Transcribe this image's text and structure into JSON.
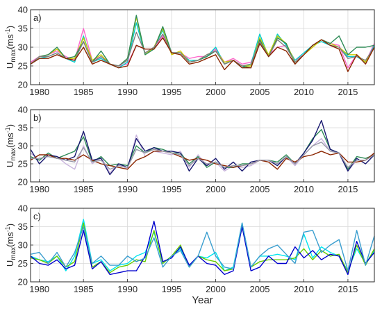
{
  "chart_data": [
    {
      "type": "line",
      "panel_label": "a)",
      "ylabel_main": "U",
      "ylabel_sub": "max",
      "ylabel_unit": "(ms",
      "ylabel_unit_exp": "-1",
      "ylabel_unit_close": ")",
      "ylim": [
        20,
        40
      ],
      "yticks": [
        20,
        25,
        30,
        35,
        40
      ],
      "xlim": [
        1979,
        2018
      ],
      "xticks": [
        1980,
        1985,
        1990,
        1995,
        2000,
        2005,
        2010,
        2015
      ],
      "grid": true,
      "x": [
        1979,
        1980,
        1981,
        1982,
        1983,
        1984,
        1985,
        1986,
        1987,
        1988,
        1989,
        1990,
        1991,
        1992,
        1993,
        1994,
        1995,
        1996,
        1997,
        1998,
        1999,
        2000,
        2001,
        2002,
        2003,
        2004,
        2005,
        2006,
        2007,
        2008,
        2009,
        2010,
        2011,
        2012,
        2013,
        2014,
        2015,
        2016,
        2017,
        2018
      ],
      "series": [
        {
          "color": "#ff66cc",
          "values": [
            26,
            27.5,
            28,
            29,
            27.5,
            26.5,
            35,
            26.5,
            27.5,
            25.5,
            25,
            25.5,
            30.5,
            29.5,
            29.5,
            33,
            28.5,
            28.5,
            27,
            27.5,
            27.5,
            29.5,
            26,
            27,
            25.5,
            26,
            31.5,
            28,
            30,
            30.5,
            26.5,
            28,
            30.5,
            32,
            31,
            30.5,
            24.5,
            28,
            26,
            31
          ]
        },
        {
          "color": "#00cccc",
          "values": [
            25.5,
            27,
            27.5,
            28.5,
            27,
            26,
            33,
            26,
            27,
            25.5,
            24.5,
            26,
            36.5,
            28,
            30,
            34.5,
            28.5,
            28.5,
            26.5,
            26.5,
            27.5,
            30,
            25.5,
            26.5,
            24.5,
            25.5,
            33.5,
            27.5,
            33.5,
            30.5,
            26.5,
            28.5,
            30.5,
            31.5,
            30.5,
            30,
            27.5,
            27.5,
            26,
            30.5
          ]
        },
        {
          "color": "#cccc00",
          "values": [
            25.5,
            27.5,
            28,
            29.5,
            27,
            27,
            32.5,
            26.5,
            28,
            25.5,
            25,
            27,
            38,
            28,
            30,
            35,
            28,
            29,
            26,
            26.5,
            28,
            29,
            26,
            26.5,
            25,
            25,
            32.5,
            28,
            33,
            31,
            26,
            28,
            30,
            32,
            31,
            30,
            28,
            28,
            26,
            30
          ]
        },
        {
          "color": "#2e8b57",
          "values": [
            25.5,
            27.5,
            28,
            30,
            27,
            27.5,
            31.5,
            26,
            29,
            25.5,
            25,
            27,
            38.5,
            28,
            29.5,
            35.5,
            28.5,
            28.5,
            26,
            26.5,
            27.5,
            29,
            25.5,
            26.5,
            25,
            24.5,
            32,
            27.5,
            32.5,
            31,
            25.5,
            28,
            30.5,
            32,
            31,
            33,
            28,
            30,
            30,
            30.5
          ]
        },
        {
          "color": "#7f7f7f",
          "values": [
            25.5,
            27.5,
            27.5,
            28.5,
            27,
            26.5,
            31.5,
            26,
            27.5,
            25.5,
            25,
            26.5,
            34,
            28.5,
            30,
            33.5,
            28.5,
            28.5,
            26,
            26.5,
            28,
            29,
            25.5,
            26.5,
            25,
            25.5,
            31.5,
            27.5,
            32,
            30,
            26,
            28,
            30.5,
            32,
            30.5,
            30,
            27,
            27.5,
            26.5,
            30
          ]
        },
        {
          "color": "#8b2500",
          "values": [
            25.5,
            27,
            27,
            28,
            27,
            26.5,
            30,
            25.5,
            26.5,
            25.5,
            24.5,
            25,
            30.5,
            29.5,
            29.5,
            32.5,
            28.5,
            28,
            25.5,
            26,
            27,
            28,
            24,
            26.5,
            24.5,
            24.5,
            31,
            27.5,
            30,
            29,
            25.5,
            28,
            30.5,
            32,
            30.5,
            29.5,
            23.5,
            28,
            25.5,
            30
          ]
        }
      ]
    },
    {
      "type": "line",
      "panel_label": "b)",
      "ylabel_main": "U",
      "ylabel_sub": "max",
      "ylabel_unit": "(ms",
      "ylabel_unit_exp": "-1",
      "ylabel_unit_close": ")",
      "ylim": [
        20,
        40
      ],
      "yticks": [
        20,
        25,
        30,
        35,
        40
      ],
      "xlim": [
        1979,
        2018
      ],
      "xticks": [
        1980,
        1985,
        1990,
        1995,
        2000,
        2005,
        2010,
        2015
      ],
      "grid": true,
      "x": [
        1979,
        1980,
        1981,
        1982,
        1983,
        1984,
        1985,
        1986,
        1987,
        1988,
        1989,
        1990,
        1991,
        1992,
        1993,
        1994,
        1995,
        1996,
        1997,
        1998,
        1999,
        2000,
        2001,
        2002,
        2003,
        2004,
        2005,
        2006,
        2007,
        2008,
        2009,
        2010,
        2011,
        2012,
        2013,
        2014,
        2015,
        2016,
        2017,
        2018
      ],
      "series": [
        {
          "color": "#c8b4dc",
          "values": [
            28,
            26,
            27.5,
            27,
            25,
            23.5,
            30,
            25,
            27,
            22.5,
            25,
            23.5,
            33,
            27,
            28.5,
            28,
            27.5,
            28.5,
            24,
            27.5,
            24.5,
            25.5,
            23,
            24.5,
            24,
            24.5,
            26,
            26,
            25,
            27,
            24.5,
            27.5,
            30,
            32,
            28.5,
            28,
            23,
            26,
            26,
            28
          ]
        },
        {
          "color": "#2e8b57",
          "values": [
            27,
            26,
            28,
            26.5,
            27.5,
            28.5,
            32.5,
            25.5,
            27,
            24.5,
            25,
            24.5,
            30,
            28,
            29.5,
            29,
            28,
            28,
            25,
            27,
            24,
            25.5,
            24,
            24,
            25,
            25,
            26,
            26,
            25.5,
            27.5,
            25,
            28,
            32,
            34.5,
            29,
            28,
            23.5,
            27,
            26.5,
            27.5
          ]
        },
        {
          "color": "#191970",
          "values": [
            29,
            25,
            27.5,
            27,
            26,
            27,
            34,
            26,
            26.5,
            22,
            25,
            24,
            32,
            28.5,
            29.5,
            28.5,
            28.5,
            28,
            23,
            26.5,
            24.5,
            26.5,
            23.5,
            25.5,
            23,
            25.5,
            26,
            26,
            24.5,
            27,
            25,
            28,
            31.5,
            37,
            29,
            28,
            23,
            26.5,
            25,
            27.5
          ]
        },
        {
          "color": "#8b2500",
          "values": [
            26,
            27.5,
            27.5,
            26.5,
            26.5,
            26,
            27.5,
            26,
            25,
            24.5,
            24,
            23.5,
            26,
            27,
            28.5,
            28.5,
            28,
            27,
            26,
            26.5,
            26,
            25,
            24.5,
            24,
            24.5,
            25,
            26,
            25.5,
            23.5,
            26.5,
            25.5,
            27,
            27.5,
            28.5,
            27.5,
            28,
            25.5,
            25.5,
            26,
            28
          ]
        },
        {
          "color": "#9999aa",
          "values": [
            26.5,
            26.5,
            27,
            26.5,
            26,
            25.5,
            29.5,
            25.5,
            26,
            23.5,
            24.5,
            24,
            29,
            28,
            29,
            28.5,
            28,
            27.5,
            24.5,
            26.5,
            25,
            25.5,
            24,
            24.5,
            24.5,
            25,
            26,
            26,
            25,
            27,
            25,
            27.5,
            30,
            31,
            28.5,
            28,
            24,
            26,
            26,
            27.5
          ]
        }
      ]
    },
    {
      "type": "line",
      "panel_label": "c)",
      "ylabel_main": "U",
      "ylabel_sub": "max",
      "ylabel_unit": "(ms",
      "ylabel_unit_exp": "-1",
      "ylabel_unit_close": ")",
      "xlabel": "Year",
      "ylim": [
        20,
        40
      ],
      "yticks": [
        20,
        25,
        30,
        35,
        40
      ],
      "xlim": [
        1979,
        2018
      ],
      "xticks": [
        1980,
        1985,
        1990,
        1995,
        2000,
        2005,
        2010,
        2015
      ],
      "grid": true,
      "x": [
        1979,
        1980,
        1981,
        1982,
        1983,
        1984,
        1985,
        1986,
        1987,
        1988,
        1989,
        1990,
        1991,
        1992,
        1993,
        1994,
        1995,
        1996,
        1997,
        1998,
        1999,
        2000,
        2001,
        2002,
        2003,
        2004,
        2005,
        2006,
        2007,
        2008,
        2009,
        2010,
        2011,
        2012,
        2013,
        2014,
        2015,
        2016,
        2017,
        2018
      ],
      "series": [
        {
          "color": "#00e5ee",
          "values": [
            27,
            26,
            25.5,
            27,
            23,
            27,
            37,
            25,
            26,
            23,
            24.5,
            25,
            27,
            28,
            33.5,
            25,
            27,
            29,
            24,
            27,
            26.5,
            28,
            23,
            24,
            36,
            24,
            27,
            27,
            27.5,
            27,
            26,
            33,
            26.5,
            29.5,
            28,
            27,
            23,
            29,
            25,
            28.5
          ]
        },
        {
          "color": "#66cc00",
          "values": [
            26.5,
            26,
            25,
            27,
            24,
            25.5,
            36,
            24,
            25.5,
            22.5,
            24,
            24.5,
            26,
            25.5,
            34,
            25,
            27,
            30,
            24,
            27,
            26,
            25.5,
            23,
            23.5,
            35,
            24,
            25.5,
            26,
            26,
            26,
            26.5,
            29,
            26,
            28.5,
            27,
            27.5,
            22.5,
            30,
            24.5,
            29
          ]
        },
        {
          "color": "#0000cd",
          "values": [
            27,
            25,
            24.5,
            26,
            23.5,
            24.5,
            34,
            23.5,
            25.5,
            22,
            22.5,
            23,
            23,
            27,
            36.5,
            25.5,
            26.5,
            29.5,
            24.5,
            27,
            25,
            24.5,
            22,
            23,
            35,
            23,
            24,
            27,
            25,
            25,
            29.5,
            26.5,
            28.5,
            26,
            27.5,
            27,
            22,
            31,
            25,
            28
          ]
        },
        {
          "color": "#3a9ecf",
          "values": [
            27.5,
            28,
            25,
            28,
            24,
            28,
            35,
            25,
            27,
            24.5,
            24.5,
            27,
            25.5,
            26.5,
            32,
            24,
            27,
            28.5,
            24,
            27,
            33.5,
            27,
            24,
            23.5,
            36,
            24,
            27,
            29,
            30,
            27.5,
            25,
            33.5,
            34,
            28,
            30,
            31.5,
            23,
            34,
            24.5,
            32.5
          ]
        }
      ]
    }
  ]
}
